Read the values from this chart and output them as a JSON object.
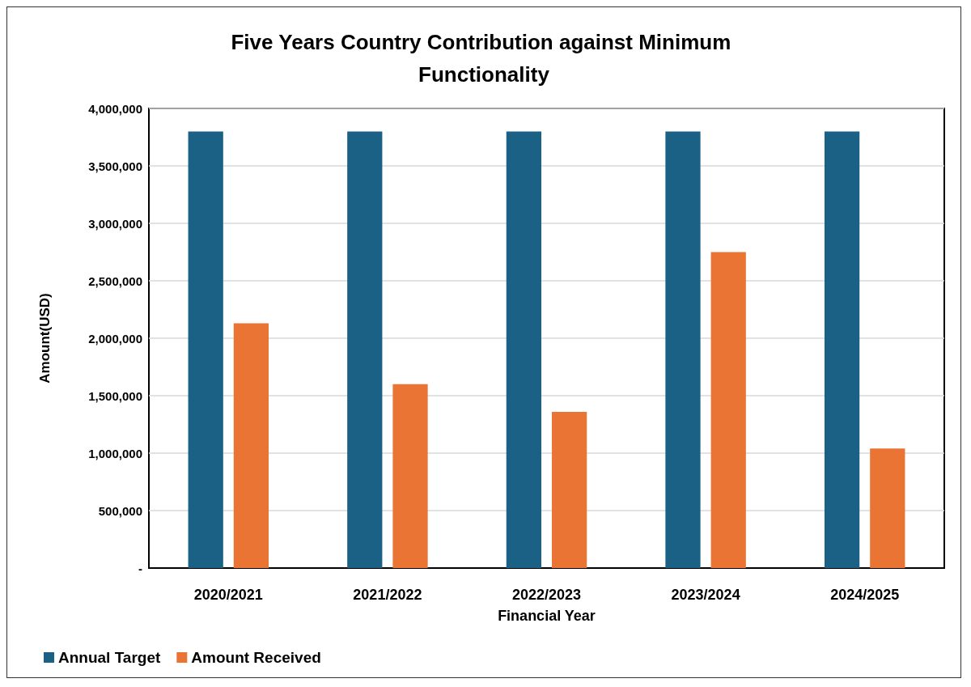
{
  "chart_data": {
    "type": "bar",
    "title": "Five Years Country Contribution against Minimum Functionality",
    "xlabel": "Financial Year",
    "ylabel": "Amount(USD)",
    "categories": [
      "2020/2021",
      "2021/2022",
      "2022/2023",
      "2023/2024",
      "2024/2025"
    ],
    "series": [
      {
        "name": "Annual Target",
        "color": "#1a6185",
        "values": [
          3800000,
          3800000,
          3800000,
          3800000,
          3800000
        ]
      },
      {
        "name": "Amount Received",
        "color": "#e97434",
        "values": [
          2130000,
          1600000,
          1360000,
          2750000,
          1040000
        ]
      }
    ],
    "ylim": [
      0,
      4000000
    ],
    "yticks": [
      {
        "value": 0,
        "label": "-"
      },
      {
        "value": 500000,
        "label": "500,000"
      },
      {
        "value": 1000000,
        "label": "1,000,000"
      },
      {
        "value": 1500000,
        "label": "1,500,000"
      },
      {
        "value": 2000000,
        "label": "2,000,000"
      },
      {
        "value": 2500000,
        "label": "2,500,000"
      },
      {
        "value": 3000000,
        "label": "3,000,000"
      },
      {
        "value": 3500000,
        "label": "3,500,000"
      },
      {
        "value": 4000000,
        "label": "4,000,000"
      }
    ],
    "grid": "y",
    "legend": "bottom left"
  }
}
